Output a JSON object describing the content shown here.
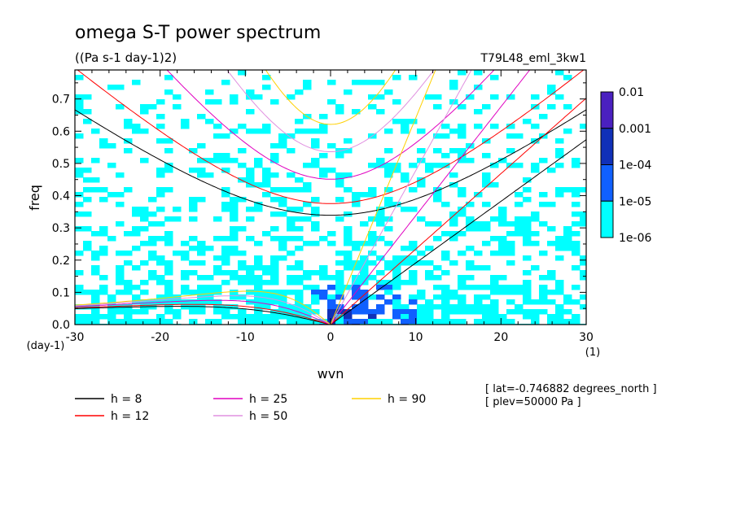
{
  "chart_data": {
    "type": "heatmap",
    "title": "omega S-T power spectrum",
    "subtitle": "((Pa s-1 day-1)2)",
    "run_label": "T79L48_eml_3kw1",
    "xlabel": "wvn",
    "ylabel": "freq",
    "x_unit": "(1)",
    "y_unit": "(day-1)",
    "xlim": [
      -30,
      30
    ],
    "ylim": [
      0,
      0.79
    ],
    "x_ticks": [
      -30,
      -20,
      -10,
      0,
      10,
      20,
      30
    ],
    "y_ticks": [
      0.0,
      0.1,
      0.2,
      0.3,
      0.4,
      0.5,
      0.6,
      0.7
    ],
    "x_tick_labels": [
      "-30",
      "-20",
      "-10",
      "0",
      "10",
      "20",
      "30"
    ],
    "y_tick_labels": [
      "0.0",
      "0.1",
      "0.2",
      "0.3",
      "0.4",
      "0.5",
      "0.6",
      "0.7"
    ],
    "colorbar": {
      "levels": [
        "0.01",
        "0.001",
        "1e-04",
        "1e-05",
        "1e-06"
      ],
      "colors": [
        "#4a20c0",
        "#1030b8",
        "#1060ff",
        "#00ffff"
      ]
    },
    "dispersion_legend": [
      {
        "label": "h = 8",
        "h": 8,
        "color": "#000000"
      },
      {
        "label": "h = 12",
        "h": 12,
        "color": "#ff0000"
      },
      {
        "label": "h = 25",
        "h": 25,
        "color": "#e000c0"
      },
      {
        "label": "h = 50",
        "h": 50,
        "color": "#e090e0"
      },
      {
        "label": "h = 90",
        "h": 90,
        "color": "#ffd000"
      }
    ],
    "annotations": [
      "[ lat=-0.746882 degrees_north ]",
      "[ plev=50000 Pa ]"
    ]
  }
}
